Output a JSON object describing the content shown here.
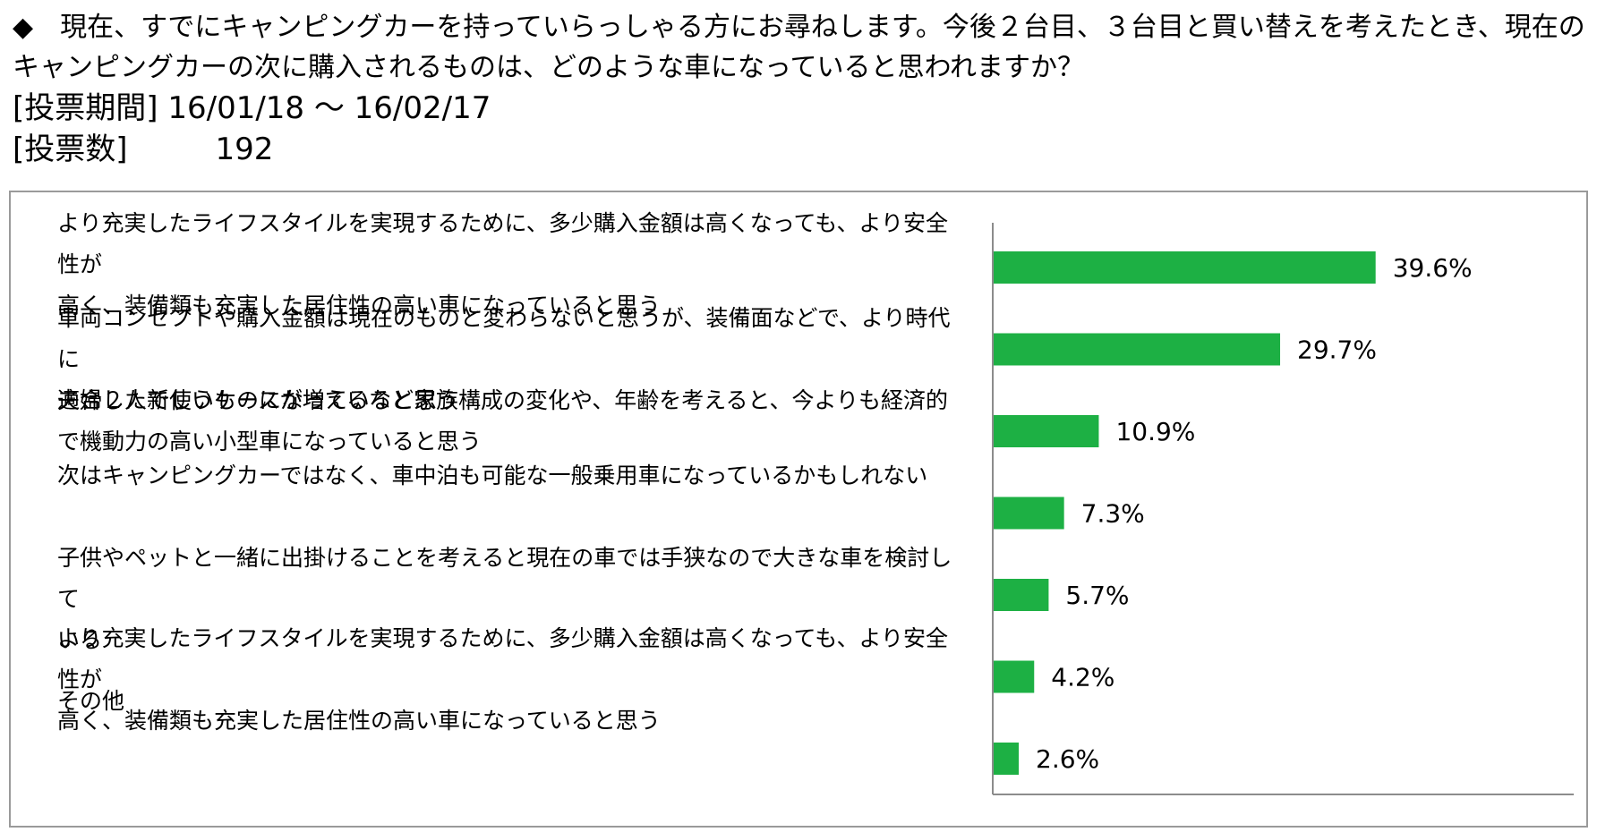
{
  "question": {
    "line1": "◆　現在、すでにキャンピングカーを持っていらっしゃる方にお尋ねします。今後２台目、３台目と買い替えを考えたとき、現在の",
    "line2": "キャンピングカーの次に購入されるものは、どのような車になっていると思われますか？",
    "period_label": "[投票期間]",
    "period_value": "16/01/18 ～ 16/02/17",
    "votes_label": "[投票数]",
    "votes_value": "192"
  },
  "chart_data": {
    "type": "bar",
    "orientation": "horizontal",
    "bar_color": "#1db044",
    "unit": "%",
    "categories": [
      "より充実したライフスタイルを実現するために、多少購入金額は高くなっても、より安全性が高く、装備類も充実した居住性の高い車になっていると思う",
      "車両コンセプトや購入金額は現在のものと変わらないと思うが、装備面などで、より時代に適合した新しいものになっていると思う",
      "夫婦２人で使うケースが増えるなど家族構成の変化や、年齢を考えると、今よりも経済的で機動力の高い小型車になっていると思う",
      "次はキャンピングカーではなく、車中泊も可能な一般乗用車になっているかもしれない",
      "子供やペットと一緒に出掛けることを考えると現在の車では手狭なので大きな車を検討している",
      "より充実したライフスタイルを実現するために、多少購入金額は高くなっても、より安全性が高く、装備類も充実した居住性の高い車になっていると思う",
      "その他"
    ],
    "label_lines": [
      [
        "より充実したライフスタイルを実現するために、多少購入金額は高くなっても、より安全性が",
        "高く、装備類も充実した居住性の高い車になっていると思う"
      ],
      [
        "車両コンセプトや購入金額は現在のものと変わらないと思うが、装備面などで、より時代に",
        "適合した新しいものになっていると思う"
      ],
      [
        "夫婦２人で使うケースが増えるなど家族構成の変化や、年齢を考えると、今よりも経済的",
        "で機動力の高い小型車になっていると思う"
      ],
      [
        "次はキャンピングカーではなく、車中泊も可能な一般乗用車になっているかもしれない"
      ],
      [
        "子供やペットと一緒に出掛けることを考えると現在の車では手狭なので大きな車を検討して",
        "いる"
      ],
      [
        "より充実したライフスタイルを実現するために、多少購入金額は高くなっても、より安全性が",
        "高く、装備類も充実した居住性の高い車になっていると思う"
      ],
      [
        "その他"
      ]
    ],
    "values": [
      39.6,
      29.7,
      10.9,
      7.3,
      5.7,
      4.2,
      2.6
    ],
    "value_labels": [
      "39.6%",
      "29.7%",
      "10.9%",
      "7.3%",
      "5.7%",
      "4.2%",
      "2.6%"
    ],
    "xlim": [
      0,
      40
    ],
    "grid": false
  }
}
